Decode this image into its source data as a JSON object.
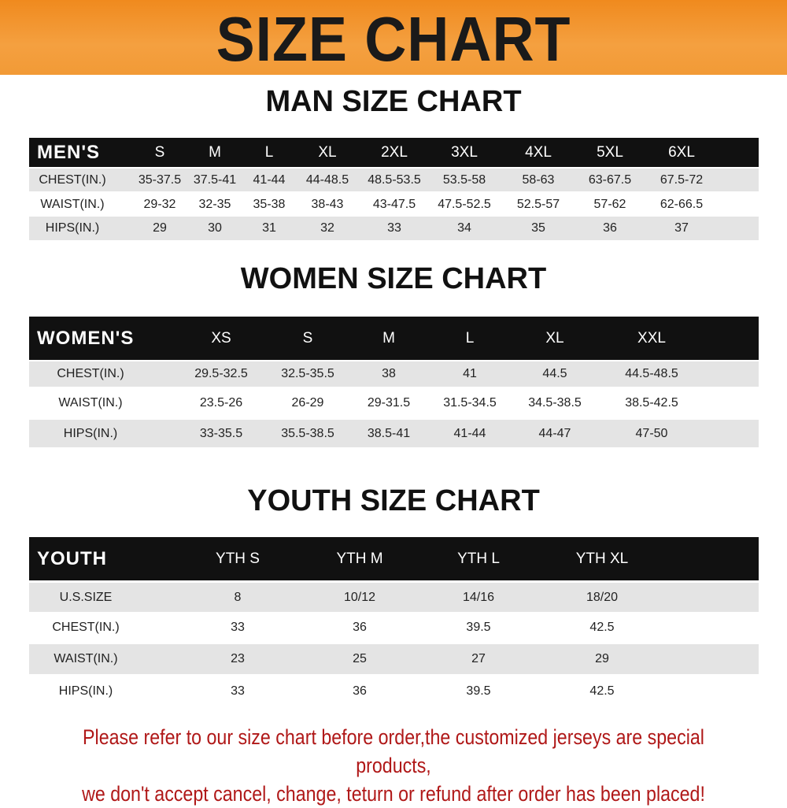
{
  "title": "SIZE CHART",
  "men": {
    "title": "MAN SIZE CHART",
    "header": [
      "MEN'S",
      "S",
      "M",
      "L",
      "XL",
      "2XL",
      "3XL",
      "4XL",
      "5XL",
      "6XL"
    ],
    "rows": [
      [
        "CHEST(IN.)",
        "35-37.5",
        "37.5-41",
        "41-44",
        "44-48.5",
        "48.5-53.5",
        "53.5-58",
        "58-63",
        "63-67.5",
        "67.5-72"
      ],
      [
        "WAIST(IN.)",
        "29-32",
        "32-35",
        "35-38",
        "38-43",
        "43-47.5",
        "47.5-52.5",
        "52.5-57",
        "57-62",
        "62-66.5"
      ],
      [
        "HIPS(IN.)",
        "29",
        "30",
        "31",
        "32",
        "33",
        "34",
        "35",
        "36",
        "37"
      ]
    ]
  },
  "women": {
    "title": "WOMEN SIZE CHART",
    "header": [
      "WOMEN'S",
      "XS",
      "S",
      "M",
      "L",
      "XL",
      "XXL"
    ],
    "rows": [
      [
        "CHEST(IN.)",
        "29.5-32.5",
        "32.5-35.5",
        "38",
        "41",
        "44.5",
        "44.5-48.5"
      ],
      [
        "WAIST(IN.)",
        "23.5-26",
        "26-29",
        "29-31.5",
        "31.5-34.5",
        "34.5-38.5",
        "38.5-42.5"
      ],
      [
        "HIPS(IN.)",
        "33-35.5",
        "35.5-38.5",
        "38.5-41",
        "41-44",
        "44-47",
        "47-50"
      ]
    ]
  },
  "youth": {
    "title": "YOUTH SIZE CHART",
    "header": [
      "YOUTH",
      "YTH S",
      "YTH M",
      "YTH L",
      "YTH XL"
    ],
    "rows": [
      [
        "U.S.SIZE",
        "8",
        "10/12",
        "14/16",
        "18/20"
      ],
      [
        "CHEST(IN.)",
        "33",
        "36",
        "39.5",
        "42.5"
      ],
      [
        "WAIST(IN.)",
        "23",
        "25",
        "27",
        "29"
      ],
      [
        "HIPS(IN.)",
        "33",
        "36",
        "39.5",
        "42.5"
      ]
    ]
  },
  "note": [
    "Please refer to our size chart before order,the customized jerseys are special products,",
    "we don't accept cancel, change, teturn or refund after order has been placed!"
  ],
  "colors": {
    "banner": "#f08a1e",
    "header_bg": "#111111",
    "stripe": "#e4e4e4",
    "note": "#b01818"
  }
}
